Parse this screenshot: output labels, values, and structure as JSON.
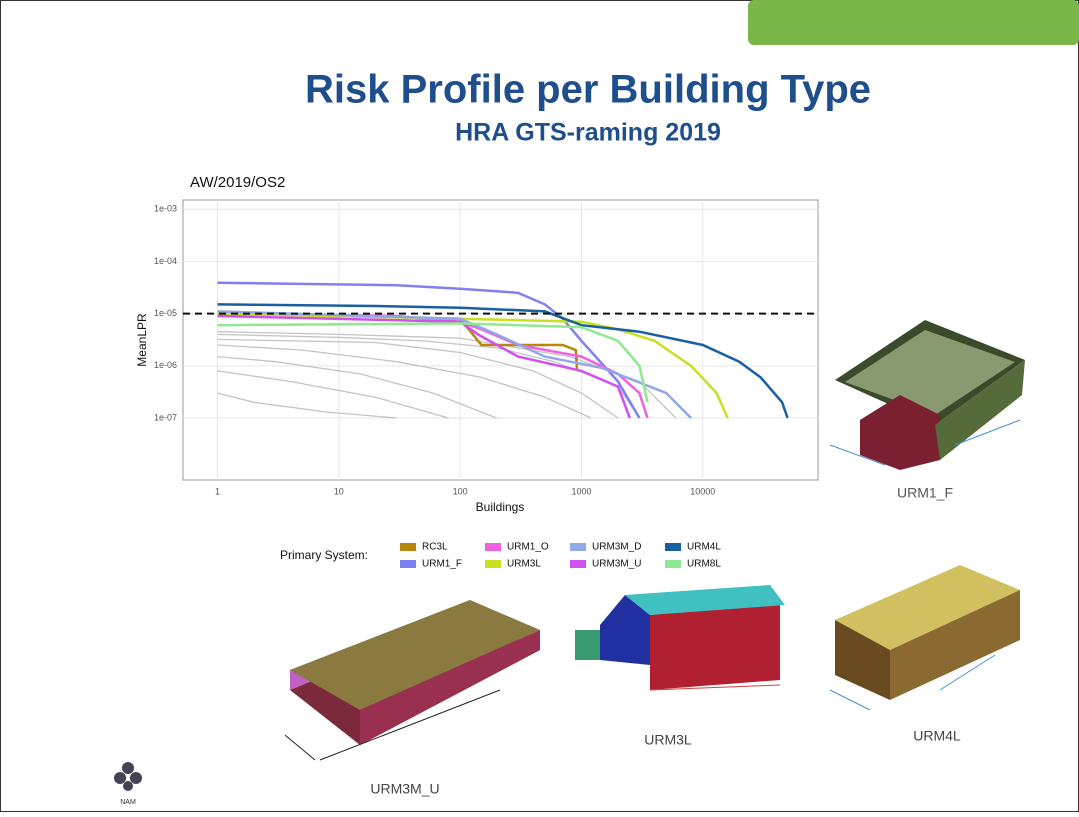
{
  "slide": {
    "title": "Risk Profile per Building Type",
    "subtitle": "HRA GTS-raming 2019",
    "pictures": [
      {
        "label": "URM1_F"
      },
      {
        "label": "URM3M_U"
      },
      {
        "label": "URM3L"
      },
      {
        "label": "URM4L"
      }
    ],
    "logo": "NAM"
  },
  "chart_data": {
    "type": "line",
    "title": "AW/2019/OS2",
    "x_label": "Buildings",
    "y_label": "MeanLPR",
    "xscale": "log",
    "yscale": "log",
    "grid": true,
    "xlim": [
      0.52,
      89000
    ],
    "ylim": [
      6.5e-09,
      0.0015
    ],
    "xticks": [
      1,
      10,
      100,
      1000,
      10000
    ],
    "yticks": [
      {
        "value": 0.001,
        "label": "1e-03"
      },
      {
        "value": 0.0001,
        "label": "1e-04"
      },
      {
        "value": 1e-05,
        "label": "1e-05"
      },
      {
        "value": 1e-06,
        "label": "1e-06"
      },
      {
        "value": 1e-07,
        "label": "1e-07"
      }
    ],
    "hline": 1e-05,
    "legend_title": "Primary System:",
    "other_series": [
      {
        "color": "#c4c4c4",
        "x": [
          1,
          10,
          50,
          200,
          600,
          2000,
          3000
        ],
        "values": [
          4e-06,
          3.5e-06,
          3e-06,
          2.2e-06,
          1.2e-06,
          4e-07,
          1e-07
        ]
      },
      {
        "color": "#c4c4c4",
        "x": [
          1,
          20,
          100,
          400,
          1000,
          2000
        ],
        "values": [
          3.2e-06,
          2.8e-06,
          1.8e-06,
          8e-07,
          3e-07,
          1e-07
        ]
      },
      {
        "color": "#c4c4c4",
        "x": [
          1,
          5,
          30,
          150,
          500,
          1200
        ],
        "values": [
          2.5e-06,
          2e-06,
          1.2e-06,
          6e-07,
          2.5e-07,
          1e-07
        ]
      },
      {
        "color": "#c4c4c4",
        "x": [
          1,
          3,
          15,
          60,
          200
        ],
        "values": [
          1.5e-06,
          1.2e-06,
          7e-07,
          3e-07,
          1e-07
        ]
      },
      {
        "color": "#c4c4c4",
        "x": [
          1,
          4,
          20,
          80
        ],
        "values": [
          8e-07,
          5e-07,
          2.5e-07,
          1e-07
        ]
      },
      {
        "color": "#c4c4c4",
        "x": [
          1,
          10,
          100,
          800,
          3000,
          6000
        ],
        "values": [
          4.5e-06,
          4e-06,
          3.4e-06,
          1.5e-06,
          5e-07,
          1e-07
        ]
      },
      {
        "color": "#c4c4c4",
        "x": [
          1,
          2,
          8,
          30
        ],
        "values": [
          3e-07,
          2e-07,
          1.3e-07,
          1e-07
        ]
      }
    ],
    "series": [
      {
        "name": "RC3L",
        "color": "#b8860b",
        "x": [
          1,
          100,
          150,
          700,
          900,
          920
        ],
        "values": [
          1e-05,
          8e-06,
          2.5e-06,
          2.5e-06,
          2e-06,
          8e-07
        ]
      },
      {
        "name": "URM1_F",
        "color": "#8080f0",
        "x": [
          1,
          30,
          100,
          300,
          500,
          700,
          1000,
          2000,
          3000
        ],
        "values": [
          3.9e-05,
          3.5e-05,
          3e-05,
          2.5e-05,
          1.5e-05,
          8e-06,
          3e-06,
          5e-07,
          1e-07
        ]
      },
      {
        "name": "URM1_O",
        "color": "#f060e0",
        "x": [
          1,
          30,
          100,
          150,
          300,
          1000,
          2000,
          3000,
          3500
        ],
        "values": [
          1e-05,
          9e-06,
          7e-06,
          5e-06,
          2.5e-06,
          1.5e-06,
          7e-07,
          3e-07,
          1e-07
        ]
      },
      {
        "name": "URM3L",
        "color": "#c8e020",
        "x": [
          1,
          100,
          1000,
          2000,
          4000,
          8000,
          13000,
          16000
        ],
        "values": [
          1e-05,
          8e-06,
          7e-06,
          5e-06,
          3e-06,
          1e-06,
          3e-07,
          1e-07
        ]
      },
      {
        "name": "URM3M_D",
        "color": "#90a8e8",
        "x": [
          1,
          100,
          200,
          500,
          1500,
          5000,
          8000
        ],
        "values": [
          1.1e-05,
          8e-06,
          4e-06,
          1.5e-06,
          9e-07,
          3e-07,
          1e-07
        ]
      },
      {
        "name": "URM3M_U",
        "color": "#d050f0",
        "x": [
          1,
          100,
          140,
          300,
          1000,
          2000,
          2500
        ],
        "values": [
          9e-06,
          7e-06,
          4e-06,
          1.5e-06,
          8e-07,
          4e-07,
          1e-07
        ]
      },
      {
        "name": "URM4L",
        "color": "#1a5fa0",
        "x": [
          1,
          20,
          100,
          500,
          1000,
          3000,
          10000,
          20000,
          30000,
          45000,
          50000
        ],
        "values": [
          1.5e-05,
          1.4e-05,
          1.3e-05,
          1.1e-05,
          6e-06,
          4.5e-06,
          2.5e-06,
          1.2e-06,
          6e-07,
          2e-07,
          1e-07
        ]
      },
      {
        "name": "URM8L",
        "color": "#90e890",
        "x": [
          1,
          100,
          1000,
          2000,
          3000,
          3500
        ],
        "values": [
          6e-06,
          6.5e-06,
          5.5e-06,
          3e-06,
          1e-06,
          2e-07
        ]
      }
    ]
  }
}
